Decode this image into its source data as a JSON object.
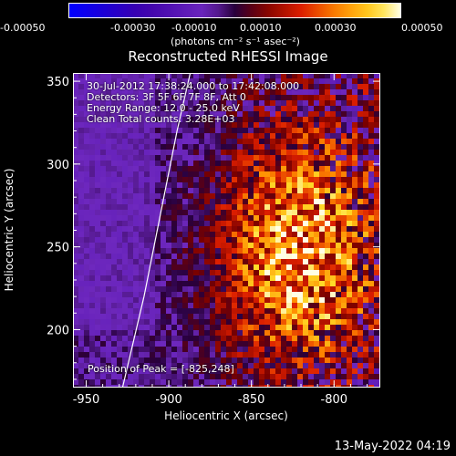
{
  "colorbar": {
    "ticks": [
      "-0.00050",
      "-0.00030",
      "-0.00010",
      "0.00010",
      "0.00030",
      "0.00050"
    ],
    "units": "(photons cm⁻² s⁻¹ asec⁻²)",
    "range": [
      -0.0005,
      0.0005
    ]
  },
  "chart_data": {
    "type": "heatmap",
    "title": "Reconstructed RHESSI Image",
    "xlabel": "Heliocentric X (arcsec)",
    "ylabel": "Heliocentric Y (arcsec)",
    "xlim": [
      -958,
      -772
    ],
    "ylim": [
      165,
      355
    ],
    "xticks": [
      -950,
      -900,
      -850,
      -800
    ],
    "yticks": [
      200,
      250,
      300,
      350
    ],
    "annotations": [
      "30-Jul-2012 17:38:24.000 to 17:42:08.000",
      "Detectors: 3F 5F 6F 7F 8F, Att 0",
      "Energy Range: 12.0 - 25.0 keV",
      "Clean     Total counts: 3.28E+03"
    ],
    "peak_label": "Position of Peak = [-825,248]",
    "peak": [
      -825,
      248
    ],
    "limb_curve": [
      [
        -928,
        165
      ],
      [
        -915,
        220
      ],
      [
        -905,
        270
      ],
      [
        -895,
        320
      ],
      [
        -887,
        355
      ]
    ]
  },
  "footer": {
    "date": "13-May-2022 04:19"
  }
}
